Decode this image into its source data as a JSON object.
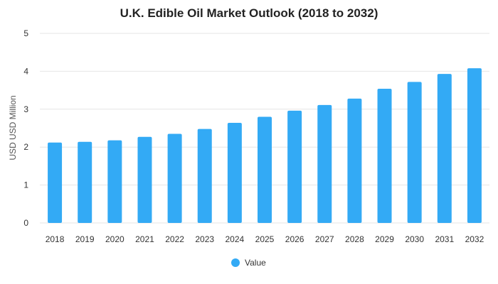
{
  "chart_data": {
    "type": "bar",
    "title": "U.K. Edible Oil Market Outlook (2018 to 2032)",
    "xlabel": "",
    "ylabel": "USD USD Million",
    "categories": [
      "2018",
      "2019",
      "2020",
      "2021",
      "2022",
      "2023",
      "2024",
      "2025",
      "2026",
      "2027",
      "2028",
      "2029",
      "2030",
      "2031",
      "2032"
    ],
    "series": [
      {
        "name": "Value",
        "values": [
          2.12,
          2.14,
          2.18,
          2.27,
          2.35,
          2.48,
          2.64,
          2.8,
          2.96,
          3.11,
          3.28,
          3.54,
          3.72,
          3.93,
          4.08
        ]
      }
    ],
    "ylim": [
      0,
      5
    ],
    "yticks": [
      "0",
      "1",
      "2",
      "3",
      "4",
      "5"
    ],
    "grid": true,
    "legend_position": "bottom",
    "bar_color": "#33aaf5"
  }
}
